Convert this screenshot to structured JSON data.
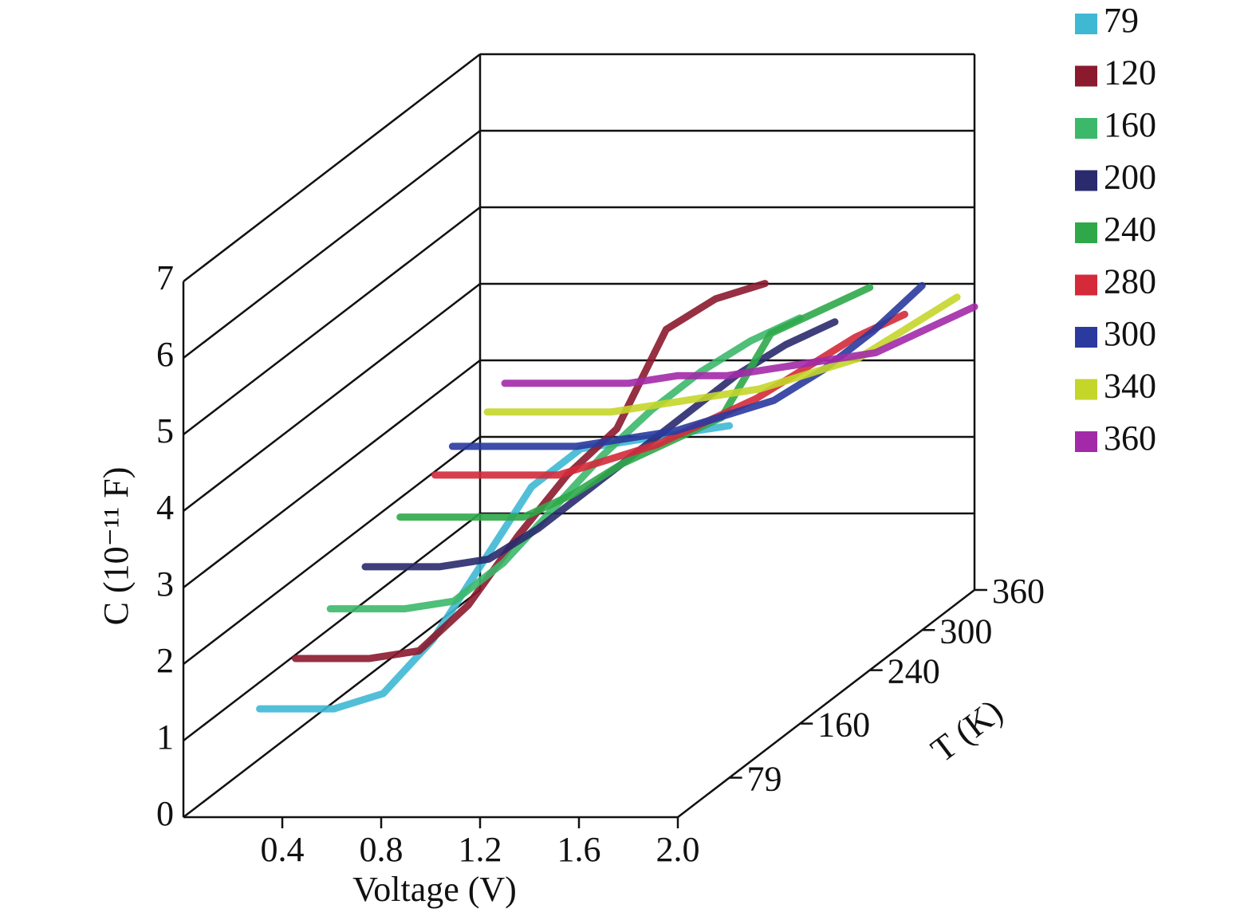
{
  "chart_data": {
    "type": "line3d",
    "x_label": "Voltage (V)",
    "y_label": "C (10⁻¹¹ F)",
    "z_label": "T (K)",
    "xlim": [
      0,
      2.0
    ],
    "xticks": [
      {
        "value": 0.4,
        "label": "0.4"
      },
      {
        "value": 0.8,
        "label": "0.8"
      },
      {
        "value": 1.2,
        "label": "1.2"
      },
      {
        "value": 1.6,
        "label": "1.6"
      },
      {
        "value": 2.0,
        "label": "2.0"
      }
    ],
    "ylim": [
      0,
      7
    ],
    "yticks": [
      0,
      1,
      2,
      3,
      4,
      5,
      6,
      7
    ],
    "zlim": [
      20,
      360
    ],
    "zticks": [
      79,
      160,
      240,
      300,
      360
    ],
    "grid": true,
    "legend": "top-right",
    "x": [
      0.1,
      0.4,
      0.6,
      0.8,
      1.0,
      1.2,
      1.4,
      1.6,
      1.8,
      2.0
    ],
    "series": [
      {
        "name": "79",
        "z": 79,
        "color": "#3fb8d4",
        "values": [
          0.9,
          0.9,
          1.1,
          1.8,
          2.8,
          3.8,
          4.3,
          4.4,
          4.5,
          4.6
        ]
      },
      {
        "name": "120",
        "z": 120,
        "color": "#8b1a2e",
        "values": [
          1.2,
          1.2,
          1.3,
          1.9,
          2.8,
          3.6,
          4.2,
          5.5,
          5.9,
          6.1
        ]
      },
      {
        "name": "160",
        "z": 160,
        "color": "#3cb86a",
        "values": [
          1.5,
          1.5,
          1.6,
          2.1,
          2.8,
          3.5,
          4.1,
          4.6,
          5.0,
          5.3
        ]
      },
      {
        "name": "200",
        "z": 200,
        "color": "#2a2a6e",
        "values": [
          1.7,
          1.7,
          1.8,
          2.2,
          2.7,
          3.2,
          3.7,
          4.2,
          4.6,
          4.9
        ]
      },
      {
        "name": "240",
        "z": 240,
        "color": "#2fa84a",
        "values": [
          2.0,
          2.0,
          2.0,
          2.3,
          2.7,
          3.0,
          3.3,
          4.4,
          4.7,
          5.0
        ]
      },
      {
        "name": "280",
        "z": 280,
        "color": "#d42a3a",
        "values": [
          2.2,
          2.2,
          2.2,
          2.4,
          2.6,
          2.9,
          3.2,
          3.6,
          4.0,
          4.3
        ]
      },
      {
        "name": "300",
        "z": 300,
        "color": "#2a3a9e",
        "values": [
          2.4,
          2.4,
          2.4,
          2.5,
          2.6,
          2.8,
          3.0,
          3.4,
          3.9,
          4.5
        ]
      },
      {
        "name": "340",
        "z": 340,
        "color": "#c4d62a",
        "values": [
          2.5,
          2.5,
          2.5,
          2.6,
          2.7,
          2.8,
          3.0,
          3.2,
          3.6,
          4.0
        ]
      },
      {
        "name": "360",
        "z": 360,
        "color": "#a22aa8",
        "values": [
          2.7,
          2.7,
          2.7,
          2.8,
          2.8,
          2.9,
          3.0,
          3.1,
          3.4,
          3.7
        ]
      }
    ]
  }
}
